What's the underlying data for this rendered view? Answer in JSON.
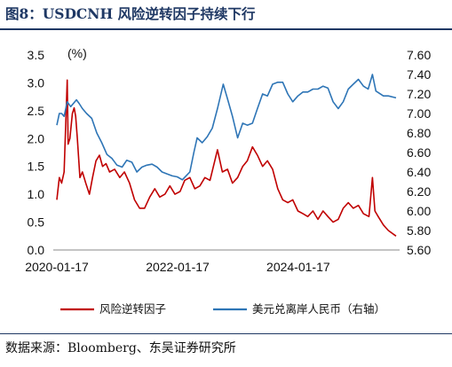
{
  "title": "图8：USDCNH 风险逆转因子持续下行",
  "source": "数据来源：Bloomberg、东吴证券研究所",
  "colors": {
    "series_left": "#c00000",
    "series_right": "#2e75b6",
    "title": "#1f3864"
  },
  "chart_data": {
    "type": "line",
    "title": "图8：USDCNH 风险逆转因子持续下行",
    "left_axis_unit": "(%)",
    "ylim_left": [
      0.0,
      3.5
    ],
    "ylim_right": [
      5.6,
      7.6
    ],
    "yticks_left": [
      "0.0",
      "0.5",
      "1.0",
      "1.5",
      "2.0",
      "2.5",
      "3.0",
      "3.5"
    ],
    "yticks_right": [
      "5.60",
      "5.80",
      "6.00",
      "6.20",
      "6.40",
      "6.60",
      "6.80",
      "7.00",
      "7.20",
      "7.40",
      "7.60"
    ],
    "xticks": [
      "2020-01-17",
      "2022-01-17",
      "2024-01-17"
    ],
    "xlim": [
      "2020-01-17",
      "2025-08-31"
    ],
    "grid": false,
    "legend_position": "bottom",
    "series": [
      {
        "name": "风险逆转因子",
        "axis": "left",
        "points": [
          [
            "2020-01-17",
            0.9
          ],
          [
            "2020-02-01",
            1.3
          ],
          [
            "2020-02-15",
            1.2
          ],
          [
            "2020-03-01",
            1.4
          ],
          [
            "2020-03-10",
            2.2
          ],
          [
            "2020-03-20",
            3.05
          ],
          [
            "2020-03-25",
            1.9
          ],
          [
            "2020-04-05",
            2.0
          ],
          [
            "2020-04-20",
            2.45
          ],
          [
            "2020-05-01",
            2.55
          ],
          [
            "2020-05-10",
            2.4
          ],
          [
            "2020-05-20",
            2.0
          ],
          [
            "2020-06-05",
            1.3
          ],
          [
            "2020-06-20",
            1.4
          ],
          [
            "2020-07-10",
            1.2
          ],
          [
            "2020-08-01",
            1.0
          ],
          [
            "2020-08-20",
            1.3
          ],
          [
            "2020-09-10",
            1.6
          ],
          [
            "2020-10-01",
            1.7
          ],
          [
            "2020-10-20",
            1.5
          ],
          [
            "2020-11-10",
            1.55
          ],
          [
            "2020-12-01",
            1.4
          ],
          [
            "2021-01-01",
            1.45
          ],
          [
            "2021-02-01",
            1.3
          ],
          [
            "2021-03-01",
            1.4
          ],
          [
            "2021-04-01",
            1.2
          ],
          [
            "2021-05-01",
            0.9
          ],
          [
            "2021-06-01",
            0.75
          ],
          [
            "2021-07-01",
            0.75
          ],
          [
            "2021-08-01",
            0.95
          ],
          [
            "2021-09-01",
            1.1
          ],
          [
            "2021-10-01",
            0.95
          ],
          [
            "2021-11-01",
            1.0
          ],
          [
            "2021-12-01",
            1.15
          ],
          [
            "2022-01-01",
            1.0
          ],
          [
            "2022-02-01",
            1.05
          ],
          [
            "2022-03-01",
            1.25
          ],
          [
            "2022-04-01",
            1.3
          ],
          [
            "2022-05-01",
            1.1
          ],
          [
            "2022-06-01",
            1.15
          ],
          [
            "2022-07-01",
            1.3
          ],
          [
            "2022-08-01",
            1.25
          ],
          [
            "2022-09-15",
            1.8
          ],
          [
            "2022-10-15",
            1.4
          ],
          [
            "2022-11-15",
            1.45
          ],
          [
            "2022-12-15",
            1.2
          ],
          [
            "2023-01-15",
            1.3
          ],
          [
            "2023-02-15",
            1.5
          ],
          [
            "2023-03-15",
            1.6
          ],
          [
            "2023-04-15",
            1.85
          ],
          [
            "2023-05-15",
            1.7
          ],
          [
            "2023-06-15",
            1.5
          ],
          [
            "2023-07-15",
            1.6
          ],
          [
            "2023-08-15",
            1.45
          ],
          [
            "2023-09-15",
            1.1
          ],
          [
            "2023-10-15",
            0.9
          ],
          [
            "2023-11-15",
            0.85
          ],
          [
            "2023-12-15",
            0.9
          ],
          [
            "2024-01-15",
            0.7
          ],
          [
            "2024-02-15",
            0.65
          ],
          [
            "2024-03-15",
            0.6
          ],
          [
            "2024-04-15",
            0.7
          ],
          [
            "2024-05-15",
            0.55
          ],
          [
            "2024-06-15",
            0.7
          ],
          [
            "2024-07-15",
            0.6
          ],
          [
            "2024-08-15",
            0.5
          ],
          [
            "2024-09-15",
            0.55
          ],
          [
            "2024-10-15",
            0.75
          ],
          [
            "2024-11-15",
            0.85
          ],
          [
            "2024-12-15",
            0.75
          ],
          [
            "2025-01-15",
            0.8
          ],
          [
            "2025-02-15",
            0.65
          ],
          [
            "2025-03-20",
            0.6
          ],
          [
            "2025-04-10",
            1.3
          ],
          [
            "2025-04-25",
            0.7
          ],
          [
            "2025-05-15",
            0.6
          ],
          [
            "2025-06-15",
            0.45
          ],
          [
            "2025-07-15",
            0.35
          ],
          [
            "2025-08-31",
            0.25
          ]
        ]
      },
      {
        "name": "美元兑离岸人民币（右轴）",
        "axis": "right",
        "points": [
          [
            "2020-01-17",
            6.88
          ],
          [
            "2020-02-01",
            7.0
          ],
          [
            "2020-02-15",
            7.0
          ],
          [
            "2020-03-01",
            6.97
          ],
          [
            "2020-03-20",
            7.12
          ],
          [
            "2020-04-10",
            7.07
          ],
          [
            "2020-05-15",
            7.14
          ],
          [
            "2020-06-01",
            7.1
          ],
          [
            "2020-06-20",
            7.05
          ],
          [
            "2020-07-15",
            7.0
          ],
          [
            "2020-08-15",
            6.95
          ],
          [
            "2020-09-15",
            6.8
          ],
          [
            "2020-10-15",
            6.7
          ],
          [
            "2020-11-15",
            6.58
          ],
          [
            "2020-12-15",
            6.54
          ],
          [
            "2021-01-15",
            6.47
          ],
          [
            "2021-02-15",
            6.45
          ],
          [
            "2021-03-15",
            6.52
          ],
          [
            "2021-04-15",
            6.5
          ],
          [
            "2021-05-15",
            6.4
          ],
          [
            "2021-06-15",
            6.45
          ],
          [
            "2021-07-15",
            6.47
          ],
          [
            "2021-08-15",
            6.48
          ],
          [
            "2021-09-15",
            6.45
          ],
          [
            "2021-10-15",
            6.4
          ],
          [
            "2021-11-15",
            6.38
          ],
          [
            "2021-12-15",
            6.36
          ],
          [
            "2022-01-15",
            6.35
          ],
          [
            "2022-02-15",
            6.32
          ],
          [
            "2022-03-15",
            6.37
          ],
          [
            "2022-04-01",
            6.4
          ],
          [
            "2022-04-25",
            6.6
          ],
          [
            "2022-05-15",
            6.75
          ],
          [
            "2022-06-15",
            6.7
          ],
          [
            "2022-07-15",
            6.76
          ],
          [
            "2022-08-15",
            6.85
          ],
          [
            "2022-09-15",
            7.05
          ],
          [
            "2022-10-20",
            7.3
          ],
          [
            "2022-11-15",
            7.15
          ],
          [
            "2022-12-15",
            6.97
          ],
          [
            "2023-01-15",
            6.75
          ],
          [
            "2023-02-15",
            6.9
          ],
          [
            "2023-03-15",
            6.88
          ],
          [
            "2023-04-15",
            6.9
          ],
          [
            "2023-05-15",
            7.05
          ],
          [
            "2023-06-15",
            7.2
          ],
          [
            "2023-07-15",
            7.18
          ],
          [
            "2023-08-15",
            7.3
          ],
          [
            "2023-09-15",
            7.32
          ],
          [
            "2023-10-15",
            7.32
          ],
          [
            "2023-11-15",
            7.2
          ],
          [
            "2023-12-15",
            7.12
          ],
          [
            "2024-01-15",
            7.18
          ],
          [
            "2024-02-15",
            7.22
          ],
          [
            "2024-03-15",
            7.22
          ],
          [
            "2024-04-15",
            7.25
          ],
          [
            "2024-05-15",
            7.25
          ],
          [
            "2024-06-15",
            7.28
          ],
          [
            "2024-07-15",
            7.26
          ],
          [
            "2024-08-15",
            7.12
          ],
          [
            "2024-09-15",
            7.05
          ],
          [
            "2024-10-15",
            7.12
          ],
          [
            "2024-11-15",
            7.25
          ],
          [
            "2024-12-15",
            7.3
          ],
          [
            "2025-01-15",
            7.35
          ],
          [
            "2025-02-15",
            7.28
          ],
          [
            "2025-03-15",
            7.25
          ],
          [
            "2025-04-10",
            7.4
          ],
          [
            "2025-05-01",
            7.23
          ],
          [
            "2025-06-15",
            7.18
          ],
          [
            "2025-07-15",
            7.18
          ],
          [
            "2025-08-31",
            7.16
          ]
        ]
      }
    ]
  }
}
